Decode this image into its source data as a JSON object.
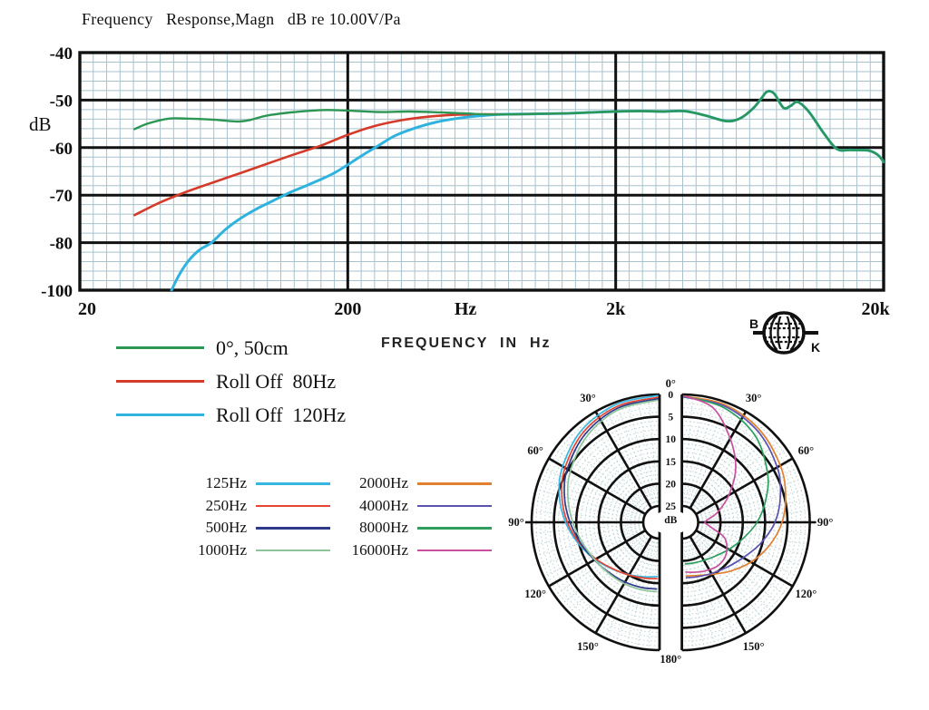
{
  "page": {
    "background": "#ffffff"
  },
  "chart_data": [
    {
      "type": "line",
      "title": "Frequency   Response,Magn   dB re 10.00V/Pa",
      "ylabel": "dB",
      "xlabel": "FREQUENCY  IN  Hz",
      "x_scale": "log",
      "xlim": [
        20,
        20000
      ],
      "x_major_gridlines": [
        20,
        200,
        2000,
        20000
      ],
      "x_tick_labels": [
        "20",
        "200",
        "Hz",
        "2k",
        "20k"
      ],
      "y_tick_labels": [
        "-40",
        "-50",
        "-60",
        "-70",
        "-80",
        "-100"
      ],
      "y_minor_step_db": 2,
      "axis_note": "bottom grid band spans -80 to -100 dB",
      "grid_color": "#a9c2cc",
      "series": [
        {
          "name": "0°, 50cm",
          "color": "#2d9655",
          "points": [
            [
              32,
              -56.1
            ],
            [
              36,
              -54.9
            ],
            [
              43,
              -53.9
            ],
            [
              50,
              -53.9
            ],
            [
              58,
              -54.0
            ],
            [
              66,
              -54.2
            ],
            [
              77,
              -54.5
            ],
            [
              86,
              -54.2
            ],
            [
              99,
              -53.3
            ],
            [
              122,
              -52.6
            ],
            [
              160,
              -52.1
            ],
            [
              200,
              -52.2
            ],
            [
              260,
              -52.5
            ],
            [
              340,
              -52.4
            ],
            [
              450,
              -52.6
            ],
            [
              550,
              -52.8
            ],
            [
              650,
              -53.0
            ],
            [
              800,
              -53.0
            ],
            [
              1000,
              -52.9
            ],
            [
              1300,
              -52.8
            ],
            [
              1600,
              -52.6
            ],
            [
              2000,
              -52.4
            ],
            [
              2500,
              -52.3
            ],
            [
              3000,
              -52.4
            ],
            [
              3600,
              -52.3
            ],
            [
              4300,
              -53.2
            ],
            [
              5150,
              -54.4
            ],
            [
              5800,
              -53.9
            ],
            [
              6500,
              -51.8
            ],
            [
              7000,
              -49.6
            ],
            [
              7350,
              -48.2
            ],
            [
              7800,
              -48.6
            ],
            [
              8450,
              -51.6
            ],
            [
              9000,
              -51.2
            ],
            [
              9550,
              -50.4
            ],
            [
              10500,
              -52.4
            ],
            [
              12000,
              -57.1
            ],
            [
              13400,
              -60.3
            ],
            [
              15000,
              -60.5
            ],
            [
              17500,
              -60.6
            ],
            [
              19000,
              -61.5
            ],
            [
              20000,
              -63.0
            ]
          ]
        },
        {
          "name": "Roll Off  80Hz",
          "color": "#d43b2a",
          "points": [
            [
              32,
              -74.2
            ],
            [
              40,
              -71.5
            ],
            [
              50,
              -69.3
            ],
            [
              63,
              -67.3
            ],
            [
              80,
              -65.3
            ],
            [
              100,
              -63.4
            ],
            [
              125,
              -61.5
            ],
            [
              160,
              -59.5
            ],
            [
              200,
              -57.3
            ],
            [
              250,
              -55.5
            ],
            [
              320,
              -54.2
            ],
            [
              400,
              -53.5
            ],
            [
              500,
              -53.1
            ],
            [
              650,
              -53.0
            ],
            [
              800,
              -53.0
            ],
            [
              1000,
              -52.9
            ],
            [
              1300,
              -52.8
            ]
          ]
        },
        {
          "name": "Roll Off  120Hz",
          "color": "#2fb3de",
          "points": [
            [
              44,
              -100
            ],
            [
              47,
              -93.5
            ],
            [
              51,
              -87.5
            ],
            [
              56,
              -83.0
            ],
            [
              62,
              -80.0
            ],
            [
              70,
              -77.2
            ],
            [
              80,
              -74.8
            ],
            [
              92,
              -72.8
            ],
            [
              105,
              -71.2
            ],
            [
              122,
              -69.4
            ],
            [
              140,
              -68.0
            ],
            [
              160,
              -66.6
            ],
            [
              180,
              -65.2
            ],
            [
              205,
              -63.2
            ],
            [
              230,
              -61.4
            ],
            [
              260,
              -59.6
            ],
            [
              300,
              -57.5
            ],
            [
              360,
              -55.8
            ],
            [
              430,
              -54.6
            ],
            [
              520,
              -53.8
            ],
            [
              620,
              -53.3
            ],
            [
              750,
              -53.0
            ],
            [
              1000,
              -52.9
            ],
            [
              1300,
              -52.8
            ],
            [
              1600,
              -52.6
            ],
            [
              2000,
              -52.4
            ],
            [
              2500,
              -52.3
            ],
            [
              3000,
              -52.4
            ],
            [
              3600,
              -52.3
            ],
            [
              4300,
              -53.2
            ],
            [
              5150,
              -54.4
            ],
            [
              5800,
              -53.9
            ],
            [
              6500,
              -51.8
            ],
            [
              7000,
              -49.6
            ],
            [
              7350,
              -48.2
            ],
            [
              7800,
              -48.6
            ],
            [
              8450,
              -51.6
            ],
            [
              9000,
              -51.2
            ],
            [
              9550,
              -50.4
            ],
            [
              10500,
              -52.4
            ],
            [
              12000,
              -57.1
            ],
            [
              13400,
              -60.3
            ],
            [
              15000,
              -60.5
            ],
            [
              17500,
              -60.6
            ],
            [
              19000,
              -61.5
            ],
            [
              20000,
              -63.0
            ]
          ]
        }
      ]
    },
    {
      "type": "polar",
      "unit": "dB",
      "rings_db": [
        0,
        5,
        10,
        15,
        20,
        25
      ],
      "ring_minor_step_db": 1,
      "spoke_major_step_deg": 30,
      "spoke_minor_step_deg": 5,
      "radial_labels": [
        "0",
        "5",
        "10",
        "15",
        "20",
        "25",
        "dB"
      ],
      "angle_labels": [
        "0°",
        "30°",
        "60°",
        "90°",
        "120°",
        "150°",
        "180°"
      ],
      "grid_color": "#b9cfd2",
      "left_series": [
        {
          "name": "125Hz",
          "color": "#35b5e0",
          "points": [
            [
              0,
              0.2
            ],
            [
              20,
              0.5
            ],
            [
              40,
              1.6
            ],
            [
              60,
              3.6
            ],
            [
              75,
              5.4
            ],
            [
              90,
              7.6
            ],
            [
              105,
              9.9
            ],
            [
              120,
              12.0
            ],
            [
              135,
              13.8
            ],
            [
              150,
              15.1
            ],
            [
              165,
              16.0
            ],
            [
              178,
              16.5
            ]
          ]
        },
        {
          "name": "250Hz",
          "color": "#e64534",
          "points": [
            [
              0,
              0.6
            ],
            [
              20,
              1.0
            ],
            [
              40,
              2.2
            ],
            [
              60,
              4.2
            ],
            [
              75,
              6.0
            ],
            [
              90,
              8.0
            ],
            [
              105,
              10.2
            ],
            [
              120,
              12.2
            ],
            [
              135,
              13.9
            ],
            [
              150,
              15.0
            ],
            [
              165,
              15.7
            ],
            [
              178,
              16.0
            ]
          ]
        },
        {
          "name": "500Hz",
          "color": "#2f3a8a",
          "points": [
            [
              0,
              0.9
            ],
            [
              20,
              1.4
            ],
            [
              40,
              2.8
            ],
            [
              60,
              4.8
            ],
            [
              75,
              6.6
            ],
            [
              90,
              8.6
            ],
            [
              105,
              10.4
            ],
            [
              120,
              11.8
            ],
            [
              135,
              12.7
            ],
            [
              150,
              13.2
            ],
            [
              165,
              13.5
            ],
            [
              178,
              13.7
            ]
          ]
        },
        {
          "name": "1000Hz",
          "color": "#8ec49a",
          "points": [
            [
              0,
              1.2
            ],
            [
              20,
              1.8
            ],
            [
              40,
              3.4
            ],
            [
              60,
              5.6
            ],
            [
              75,
              7.4
            ],
            [
              90,
              9.2
            ],
            [
              105,
              10.8
            ],
            [
              120,
              11.9
            ],
            [
              135,
              12.5
            ],
            [
              150,
              12.8
            ],
            [
              165,
              13.0
            ],
            [
              178,
              13.1
            ]
          ]
        }
      ],
      "right_series": [
        {
          "name": "2000Hz",
          "color": "#e08030",
          "points": [
            [
              0,
              0.3
            ],
            [
              20,
              0.6
            ],
            [
              40,
              1.6
            ],
            [
              60,
              3.2
            ],
            [
              75,
              4.6
            ],
            [
              90,
              6.2
            ],
            [
              105,
              8.4
            ],
            [
              120,
              10.8
            ],
            [
              135,
              13.2
            ],
            [
              150,
              15.2
            ],
            [
              165,
              16.3
            ],
            [
              176,
              16.6
            ]
          ]
        },
        {
          "name": "4000Hz",
          "color": "#5a52b0",
          "points": [
            [
              0,
              0.5
            ],
            [
              20,
              0.9
            ],
            [
              40,
              2.1
            ],
            [
              60,
              4.0
            ],
            [
              75,
              5.8
            ],
            [
              90,
              7.8
            ],
            [
              105,
              10.4
            ],
            [
              120,
              12.8
            ],
            [
              135,
              14.4
            ],
            [
              150,
              15.4
            ],
            [
              165,
              16.0
            ],
            [
              176,
              16.2
            ]
          ]
        },
        {
          "name": "8000Hz",
          "color": "#2f9e5f",
          "points": [
            [
              0,
              0.3
            ],
            [
              20,
              1.3
            ],
            [
              40,
              3.2
            ],
            [
              60,
              6.5
            ],
            [
              75,
              9.2
            ],
            [
              90,
              11.8
            ],
            [
              105,
              14.5
            ],
            [
              120,
              16.5
            ],
            [
              135,
              18.0
            ],
            [
              150,
              18.8
            ],
            [
              165,
              19.2
            ],
            [
              176,
              19.3
            ]
          ]
        },
        {
          "name": "16000Hz",
          "color": "#c8509e",
          "points": [
            [
              0,
              0.2
            ],
            [
              15,
              2.0
            ],
            [
              30,
              7.0
            ],
            [
              45,
              11.6
            ],
            [
              60,
              16.5
            ],
            [
              75,
              20.5
            ],
            [
              88,
              23.4
            ],
            [
              98,
              22.4
            ],
            [
              110,
              18.5
            ],
            [
              125,
              16.5
            ],
            [
              140,
              16.0
            ],
            [
              155,
              16.6
            ],
            [
              168,
              17.2
            ],
            [
              176,
              17.5
            ]
          ]
        }
      ]
    }
  ],
  "logo": {
    "left_letter": "B",
    "right_letter": "K"
  }
}
